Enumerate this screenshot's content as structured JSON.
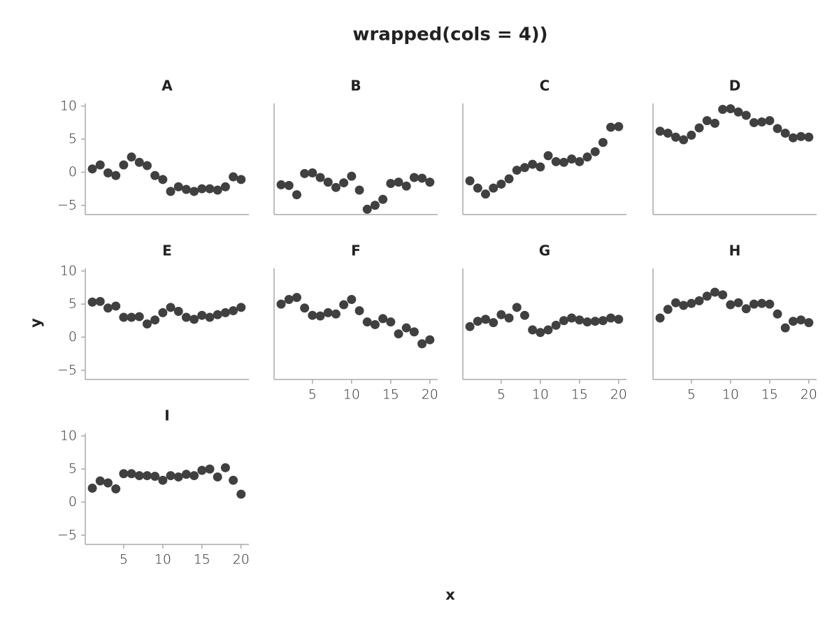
{
  "chart_data": {
    "type": "scatter",
    "title": "wrapped(cols = 4))",
    "xlabel": "x",
    "ylabel": "y",
    "xlim": [
      0.1,
      21
    ],
    "ylim": [
      -6.4,
      10.4
    ],
    "xticks": [
      5,
      10,
      15,
      20
    ],
    "yticks": [
      {
        "value": -5,
        "label": "−5"
      },
      0,
      5,
      10
    ],
    "color": "#404040",
    "facets": [
      {
        "title": "A",
        "x": [
          1,
          2,
          3,
          4,
          5,
          6,
          7,
          8,
          9,
          10,
          11,
          12,
          13,
          14,
          15,
          16,
          17,
          18,
          19,
          20
        ],
        "values": [
          0.5,
          1.1,
          -0.1,
          -0.5,
          1.1,
          2.3,
          1.5,
          1.0,
          -0.5,
          -1.1,
          -2.9,
          -2.2,
          -2.6,
          -2.9,
          -2.5,
          -2.5,
          -2.7,
          -2.2,
          -0.7,
          -1.1
        ]
      },
      {
        "title": "B",
        "x": [
          1,
          2,
          3,
          4,
          5,
          6,
          7,
          8,
          9,
          10,
          11,
          12,
          13,
          14,
          15,
          16,
          17,
          18,
          19,
          20
        ],
        "values": [
          -1.9,
          -2.0,
          -3.4,
          -0.2,
          -0.1,
          -0.8,
          -1.5,
          -2.3,
          -1.6,
          -0.6,
          -2.7,
          -5.6,
          -5.0,
          -4.1,
          -1.7,
          -1.5,
          -2.1,
          -0.8,
          -0.9,
          -1.5
        ]
      },
      {
        "title": "C",
        "x": [
          1,
          2,
          3,
          4,
          5,
          6,
          7,
          8,
          9,
          10,
          11,
          12,
          13,
          14,
          15,
          16,
          17,
          18,
          19,
          20
        ],
        "values": [
          -1.3,
          -2.4,
          -3.3,
          -2.4,
          -1.8,
          -1.0,
          0.3,
          0.7,
          1.2,
          0.8,
          2.5,
          1.6,
          1.5,
          2.0,
          1.6,
          2.3,
          3.1,
          4.5,
          6.8,
          6.9
        ]
      },
      {
        "title": "D",
        "x": [
          1,
          2,
          3,
          4,
          5,
          6,
          7,
          8,
          9,
          10,
          11,
          12,
          13,
          14,
          15,
          16,
          17,
          18,
          19,
          20
        ],
        "values": [
          6.2,
          5.9,
          5.3,
          4.9,
          5.6,
          6.7,
          7.8,
          7.4,
          9.5,
          9.6,
          9.1,
          8.6,
          7.5,
          7.6,
          7.8,
          6.6,
          5.9,
          5.2,
          5.4,
          5.3
        ]
      },
      {
        "title": "E",
        "x": [
          1,
          2,
          3,
          4,
          5,
          6,
          7,
          8,
          9,
          10,
          11,
          12,
          13,
          14,
          15,
          16,
          17,
          18,
          19,
          20
        ],
        "values": [
          5.3,
          5.4,
          4.4,
          4.7,
          3.0,
          3.0,
          3.1,
          2.0,
          2.6,
          3.7,
          4.5,
          3.9,
          3.0,
          2.7,
          3.3,
          3.0,
          3.4,
          3.7,
          4.0,
          4.5
        ]
      },
      {
        "title": "F",
        "x": [
          1,
          2,
          3,
          4,
          5,
          6,
          7,
          8,
          9,
          10,
          11,
          12,
          13,
          14,
          15,
          16,
          17,
          18,
          19,
          20
        ],
        "values": [
          5.0,
          5.7,
          6.0,
          4.4,
          3.3,
          3.2,
          3.7,
          3.5,
          4.9,
          5.7,
          4.0,
          2.3,
          1.9,
          2.8,
          2.3,
          0.5,
          1.4,
          0.8,
          -1.0,
          -0.4
        ]
      },
      {
        "title": "G",
        "x": [
          1,
          2,
          3,
          4,
          5,
          6,
          7,
          8,
          9,
          10,
          11,
          12,
          13,
          14,
          15,
          16,
          17,
          18,
          19,
          20
        ],
        "values": [
          1.6,
          2.4,
          2.7,
          2.2,
          3.4,
          2.9,
          4.5,
          3.3,
          1.1,
          0.7,
          1.1,
          1.8,
          2.5,
          2.9,
          2.6,
          2.3,
          2.4,
          2.5,
          2.9,
          2.7
        ]
      },
      {
        "title": "H",
        "x": [
          1,
          2,
          3,
          4,
          5,
          6,
          7,
          8,
          9,
          10,
          11,
          12,
          13,
          14,
          15,
          16,
          17,
          18,
          19,
          20
        ],
        "values": [
          2.9,
          4.2,
          5.2,
          4.8,
          5.1,
          5.5,
          6.2,
          6.8,
          6.4,
          4.9,
          5.2,
          4.3,
          5.0,
          5.1,
          5.0,
          3.5,
          1.4,
          2.4,
          2.6,
          2.2
        ]
      },
      {
        "title": "I",
        "x": [
          1,
          2,
          3,
          4,
          5,
          6,
          7,
          8,
          9,
          10,
          11,
          12,
          13,
          14,
          15,
          16,
          17,
          18,
          19,
          20
        ],
        "values": [
          2.1,
          3.2,
          2.9,
          2.0,
          4.3,
          4.3,
          4.0,
          4.0,
          3.9,
          3.3,
          4.0,
          3.8,
          4.2,
          4.0,
          4.8,
          5.0,
          3.8,
          5.2,
          3.3,
          1.2
        ]
      }
    ]
  }
}
